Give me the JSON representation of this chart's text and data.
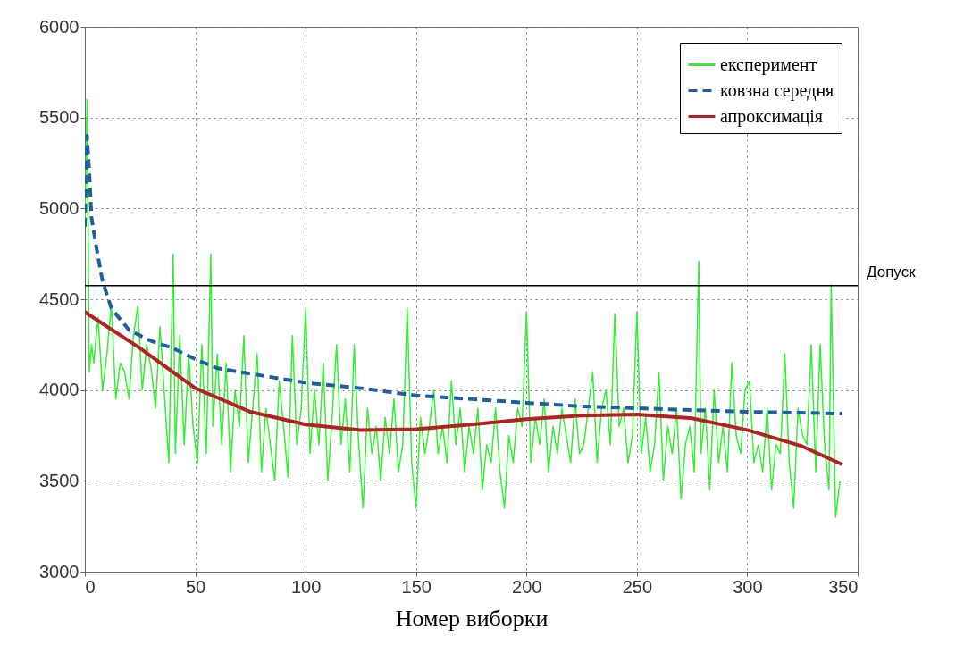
{
  "chart_data": {
    "type": "line",
    "xlabel": "Номер виборки",
    "xlim": [
      0,
      350
    ],
    "ylim": [
      3000,
      6000
    ],
    "xticks": [
      0,
      50,
      100,
      150,
      200,
      250,
      300,
      350
    ],
    "yticks": [
      3000,
      3500,
      4000,
      4500,
      5000,
      5500,
      6000
    ],
    "grid": true,
    "legend": "top right",
    "series": [
      {
        "name": "експеримент",
        "color": "#33ee33",
        "line_style": "solid",
        "x": [
          0,
          1,
          2,
          3,
          4,
          6,
          8,
          10,
          12,
          14,
          16,
          18,
          20,
          22,
          24,
          26,
          28,
          30,
          32,
          34,
          36,
          38,
          40,
          41,
          43,
          45,
          47,
          49,
          51,
          53,
          55,
          57,
          58,
          60,
          62,
          64,
          66,
          68,
          70,
          72,
          74,
          76,
          78,
          80,
          82,
          84,
          86,
          88,
          90,
          92,
          94,
          96,
          98,
          100,
          102,
          104,
          106,
          108,
          110,
          112,
          114,
          116,
          118,
          120,
          122,
          124,
          126,
          128,
          130,
          132,
          134,
          136,
          138,
          140,
          142,
          144,
          146,
          148,
          150,
          152,
          154,
          156,
          158,
          160,
          162,
          164,
          166,
          168,
          170,
          172,
          174,
          176,
          178,
          180,
          182,
          184,
          186,
          188,
          190,
          192,
          194,
          196,
          198,
          200,
          202,
          204,
          206,
          208,
          210,
          212,
          214,
          216,
          218,
          220,
          222,
          224,
          226,
          228,
          230,
          232,
          234,
          236,
          238,
          240,
          242,
          244,
          246,
          248,
          250,
          252,
          254,
          256,
          258,
          260,
          262,
          264,
          266,
          268,
          270,
          272,
          274,
          276,
          278,
          279,
          281,
          283,
          285,
          287,
          289,
          291,
          293,
          295,
          297,
          299,
          301,
          303,
          305,
          307,
          309,
          311,
          313,
          315,
          317,
          319,
          321,
          323,
          325,
          327,
          329,
          331,
          333,
          335,
          337,
          338,
          340,
          342
        ],
        "values": [
          4900,
          5600,
          4100,
          4250,
          4150,
          4400,
          4000,
          4200,
          4470,
          3950,
          4150,
          4100,
          3950,
          4300,
          4460,
          4000,
          4250,
          4120,
          3900,
          4350,
          3980,
          3600,
          4750,
          3650,
          4300,
          3700,
          4200,
          3800,
          3600,
          4250,
          3650,
          4750,
          3800,
          4200,
          3700,
          4150,
          3550,
          4000,
          3800,
          4300,
          3600,
          3900,
          4200,
          3550,
          3900,
          3700,
          3500,
          4050,
          3800,
          3520,
          4300,
          3700,
          3900,
          4450,
          3650,
          4000,
          3700,
          4150,
          3500,
          3850,
          4250,
          3700,
          3950,
          3550,
          4250,
          3700,
          3350,
          3900,
          3650,
          3800,
          3500,
          3850,
          3650,
          3950,
          3550,
          3700,
          4450,
          3600,
          3350,
          3850,
          3650,
          3800,
          4000,
          3650,
          3800,
          3600,
          4050,
          3700,
          3900,
          3550,
          3800,
          3650,
          3900,
          3450,
          3700,
          3600,
          3900,
          3550,
          3350,
          3750,
          3600,
          3900,
          3800,
          4430,
          3600,
          3850,
          3700,
          3950,
          3550,
          3800,
          3650,
          3900,
          3750,
          3600,
          3950,
          3650,
          3700,
          3900,
          4100,
          3600,
          3900,
          4000,
          3700,
          4420,
          3800,
          3900,
          3600,
          3750,
          4430,
          3650,
          3850,
          3550,
          3700,
          4100,
          3500,
          3800,
          3650,
          3900,
          3400,
          3700,
          3800,
          3550,
          4710,
          3650,
          3900,
          3450,
          4000,
          3600,
          3800,
          3550,
          4150,
          3750,
          3650,
          4000,
          4050,
          3600,
          3700,
          3550,
          3900,
          3450,
          3700,
          3650,
          4200,
          3600,
          3350,
          3900,
          3750,
          3700,
          4250,
          3550,
          4250,
          3700,
          3450,
          4580,
          3300,
          3500
        ]
      },
      {
        "name": "ковзна середня",
        "color": "#1f5f9f",
        "line_style": "dashed",
        "x": [
          0,
          1,
          2,
          3,
          5,
          8,
          12,
          20,
          30,
          40,
          50,
          60,
          75,
          100,
          125,
          150,
          175,
          200,
          225,
          250,
          275,
          300,
          325,
          343
        ],
        "values": [
          4900,
          5400,
          5200,
          4950,
          4800,
          4600,
          4450,
          4330,
          4270,
          4230,
          4170,
          4120,
          4090,
          4040,
          4010,
          3970,
          3950,
          3930,
          3910,
          3900,
          3890,
          3880,
          3875,
          3870
        ]
      },
      {
        "name": "апроксимація",
        "color": "#b22222",
        "line_style": "solid",
        "x": [
          0,
          25,
          50,
          75,
          100,
          125,
          150,
          175,
          200,
          225,
          250,
          275,
          300,
          325,
          343
        ],
        "values": [
          4430,
          4230,
          4010,
          3880,
          3810,
          3780,
          3785,
          3810,
          3840,
          3860,
          3865,
          3845,
          3780,
          3690,
          3590
        ]
      }
    ],
    "ref_lines": [
      {
        "axis": "y",
        "value": 4575,
        "label": "Допуск",
        "color": "#000000"
      }
    ]
  }
}
